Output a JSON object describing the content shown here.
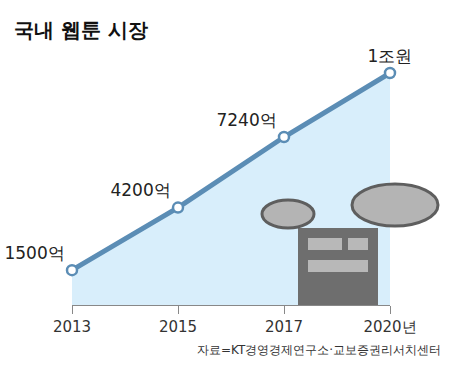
{
  "chart_data": {
    "type": "line",
    "title": "국내 웹툰 시장",
    "categories": [
      "2013",
      "2015",
      "2017",
      "2020년"
    ],
    "values": [
      1500,
      4200,
      7240,
      10000
    ],
    "value_labels": [
      "1500억",
      "4200억",
      "7240억",
      "1조원"
    ],
    "data_labels": true,
    "color": "#5b8db5",
    "ylim": [
      0,
      10000
    ],
    "tick_labels": "x",
    "grid": false,
    "annotations": [
      "자료=KT경영경제연구소·교보증권리서치센터"
    ]
  }
}
